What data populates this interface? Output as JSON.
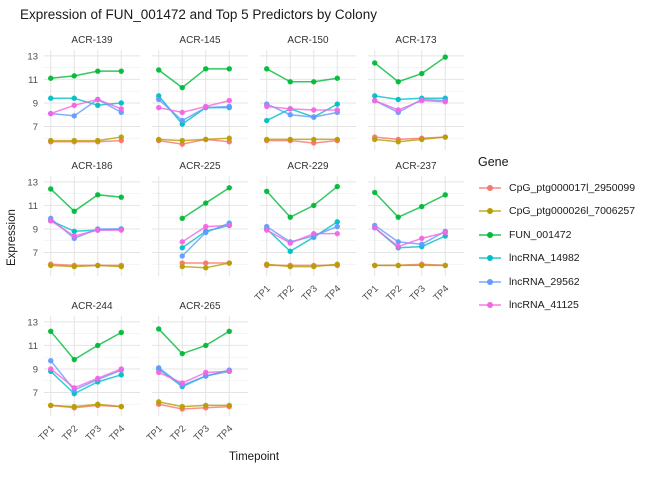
{
  "chart_data": {
    "type": "line",
    "title": "Expression of FUN_001472 and Top 5 Predictors by Colony",
    "xlabel": "Timepoint",
    "ylabel": "Expression",
    "legend_title": "Gene",
    "legend_position": "right",
    "grid": "on",
    "categories": [
      "TP1",
      "TP2",
      "TP3",
      "TP4"
    ],
    "ylim": [
      5.0,
      13.5
    ],
    "y_ticks": [
      7,
      9,
      11,
      13
    ],
    "y_minor_ticks": [
      6,
      8,
      10,
      12
    ],
    "colors": {
      "grid_major": "#E4E4E4",
      "grid_minor": "#F0F0F0",
      "tick_text": "#4d4d4d",
      "strip_text": "#333333"
    },
    "genes": [
      {
        "name": "CpG_ptg000017l_2950099",
        "color": "#F8766D"
      },
      {
        "name": "CpG_ptg000026l_7006257",
        "color": "#B79F00"
      },
      {
        "name": "FUN_001472",
        "color": "#00BA38"
      },
      {
        "name": "lncRNA_14982",
        "color": "#00BFC4"
      },
      {
        "name": "lncRNA_29562",
        "color": "#619CFF"
      },
      {
        "name": "lncRNA_41125",
        "color": "#F564E3"
      }
    ],
    "facets_with_x_labels": [
      "ACR-229",
      "ACR-237",
      "ACR-244",
      "ACR-265"
    ],
    "facets_with_y_labels": [
      "ACR-139",
      "ACR-186",
      "ACR-244"
    ],
    "facets": [
      {
        "name": "ACR-139",
        "series": [
          [
            5.7,
            5.7,
            5.7,
            5.8
          ],
          [
            5.8,
            5.8,
            5.8,
            6.1
          ],
          [
            11.1,
            11.3,
            11.7,
            11.7
          ],
          [
            9.4,
            9.4,
            8.8,
            9.0
          ],
          [
            8.1,
            7.9,
            9.3,
            8.2
          ],
          [
            8.1,
            8.8,
            9.3,
            8.5
          ]
        ]
      },
      {
        "name": "ACR-145",
        "series": [
          [
            5.8,
            5.5,
            5.9,
            5.7
          ],
          [
            5.9,
            5.8,
            5.9,
            6.0
          ],
          [
            11.8,
            10.3,
            11.9,
            11.9
          ],
          [
            9.6,
            7.2,
            8.6,
            8.6
          ],
          [
            9.3,
            7.5,
            8.6,
            8.7
          ],
          [
            8.6,
            8.2,
            8.7,
            9.2
          ]
        ]
      },
      {
        "name": "ACR-150",
        "series": [
          [
            5.8,
            5.8,
            5.6,
            5.8
          ],
          [
            5.9,
            5.9,
            5.9,
            5.9
          ],
          [
            11.9,
            10.8,
            10.8,
            11.1
          ],
          [
            7.5,
            8.5,
            7.8,
            8.9
          ],
          [
            8.9,
            8.0,
            7.8,
            8.2
          ],
          [
            8.7,
            8.5,
            8.4,
            8.4
          ]
        ]
      },
      {
        "name": "ACR-173",
        "series": [
          [
            6.1,
            5.9,
            6.0,
            6.1
          ],
          [
            5.9,
            5.7,
            5.9,
            6.1
          ],
          [
            12.4,
            10.8,
            11.5,
            12.9
          ],
          [
            9.6,
            9.3,
            9.4,
            9.4
          ],
          [
            9.2,
            8.2,
            9.3,
            9.2
          ],
          [
            9.2,
            8.4,
            9.2,
            9.1
          ]
        ]
      },
      {
        "name": "ACR-186",
        "series": [
          [
            6.0,
            5.9,
            5.9,
            5.9
          ],
          [
            5.9,
            5.8,
            5.9,
            5.8
          ],
          [
            12.4,
            10.5,
            11.9,
            11.7
          ],
          [
            9.7,
            8.8,
            8.9,
            9.0
          ],
          [
            9.9,
            8.2,
            9.0,
            9.0
          ],
          [
            9.7,
            8.4,
            8.9,
            8.9
          ]
        ]
      },
      {
        "name": "ACR-225",
        "series": [
          [
            null,
            6.1,
            6.1,
            6.1
          ],
          [
            null,
            5.8,
            5.7,
            6.1
          ],
          [
            null,
            9.9,
            11.2,
            12.5
          ],
          [
            null,
            7.4,
            8.8,
            9.3
          ],
          [
            null,
            6.7,
            8.7,
            9.5
          ],
          [
            null,
            7.9,
            9.2,
            9.3
          ]
        ]
      },
      {
        "name": "ACR-229",
        "series": [
          [
            5.9,
            5.9,
            5.9,
            5.9
          ],
          [
            6.0,
            5.8,
            5.8,
            6.0
          ],
          [
            12.2,
            10.0,
            11.0,
            12.6
          ],
          [
            9.0,
            7.1,
            8.3,
            9.6
          ],
          [
            9.2,
            7.9,
            8.4,
            9.2
          ],
          [
            8.9,
            7.8,
            8.6,
            8.6
          ]
        ]
      },
      {
        "name": "ACR-237",
        "series": [
          [
            5.9,
            5.9,
            6.0,
            5.9
          ],
          [
            5.9,
            5.9,
            5.9,
            5.9
          ],
          [
            12.1,
            10.0,
            10.9,
            11.9
          ],
          [
            9.1,
            7.4,
            7.5,
            8.4
          ],
          [
            9.3,
            7.9,
            7.7,
            8.8
          ],
          [
            9.1,
            7.5,
            8.2,
            8.7
          ]
        ]
      },
      {
        "name": "ACR-244",
        "series": [
          [
            5.9,
            5.7,
            5.9,
            5.8
          ],
          [
            5.9,
            5.8,
            6.0,
            5.8
          ],
          [
            12.2,
            9.8,
            11.0,
            12.1
          ],
          [
            8.8,
            6.9,
            7.9,
            8.5
          ],
          [
            9.7,
            7.2,
            8.1,
            8.9
          ],
          [
            9.0,
            7.4,
            8.2,
            9.0
          ]
        ]
      },
      {
        "name": "ACR-265",
        "series": [
          [
            6.0,
            5.6,
            5.7,
            5.8
          ],
          [
            6.2,
            5.8,
            5.9,
            5.9
          ],
          [
            12.4,
            10.3,
            11.0,
            12.2
          ],
          [
            9.0,
            7.5,
            8.4,
            8.8
          ],
          [
            9.1,
            7.6,
            8.4,
            8.9
          ],
          [
            8.7,
            7.8,
            8.7,
            8.8
          ]
        ]
      }
    ]
  }
}
